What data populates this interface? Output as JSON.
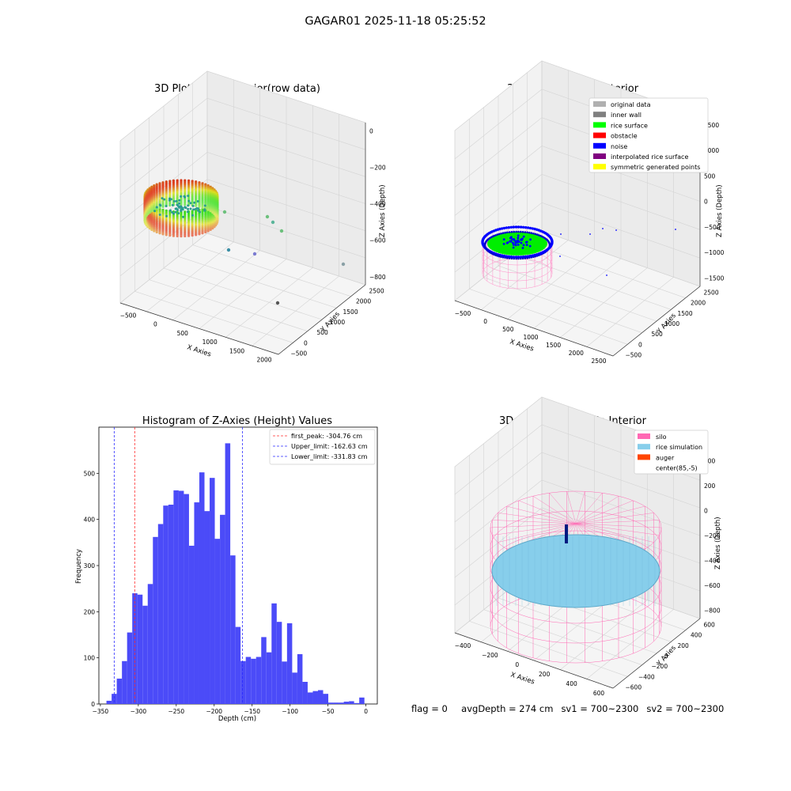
{
  "figure_title": "GAGAR01 2025-11-18 05:25:52",
  "status": {
    "flag": "flag = 0",
    "avg_depth": "avgDepth = 274 cm",
    "sv1": "sv1 = 700~2300",
    "sv2": "sv2 = 700~2300"
  },
  "colors": {
    "hist_bar": "#4b4bf8",
    "first_peak": "#ff2a2a",
    "limits": "#2a2aff",
    "silo": "#ff69b4",
    "rice_sim": "#87ceeb",
    "auger": "#ff4500",
    "rice_surface": "#00ff00",
    "noise": "#0000ff",
    "inner_wall": "#808080",
    "original_data": "#b0b0b0",
    "obstacle": "#ff0000",
    "interpolated": "#800080",
    "symmetric": "#ffff00"
  },
  "chart_data": [
    {
      "type": "scatter",
      "panel": "top-left",
      "title": "3D Plot of Silo Interior(row data)",
      "xlabel": "X Axies",
      "ylabel": "Y Axies",
      "zlabel": "Z Axies (Depth)",
      "x_ticks": [
        "−500",
        "0",
        "500",
        "1000",
        "1500",
        "2000"
      ],
      "y_ticks": [
        "−500",
        "0",
        "500",
        "1000",
        "1500",
        "2000",
        "2500"
      ],
      "z_ticks": [
        "0",
        "−200",
        "−400",
        "−600",
        "−800"
      ],
      "legend": null
    },
    {
      "type": "scatter",
      "panel": "top-right",
      "title": "3D classify of Silo Interior",
      "xlabel": "X Axies",
      "ylabel": "Y Axies",
      "zlabel": "Z Axies (Depth)",
      "x_ticks": [
        "−500",
        "0",
        "500",
        "1000",
        "1500",
        "2000",
        "2500"
      ],
      "y_ticks": [
        "−500",
        "0",
        "500",
        "1000",
        "1500",
        "2000",
        "2500"
      ],
      "z_ticks": [
        "1500",
        "1000",
        "500",
        "0",
        "−500",
        "−1000",
        "−1500"
      ],
      "legend": [
        {
          "label": "original data",
          "color": "#b0b0b0"
        },
        {
          "label": "inner wall",
          "color": "#808080"
        },
        {
          "label": "rice surface",
          "color": "#00ff00"
        },
        {
          "label": "obstacle",
          "color": "#ff0000"
        },
        {
          "label": "noise",
          "color": "#0000ff"
        },
        {
          "label": "interpolated rice surface",
          "color": "#800080"
        },
        {
          "label": "symmetric generated points",
          "color": "#ffff00"
        }
      ]
    },
    {
      "type": "bar",
      "panel": "bottom-left",
      "title": "Histogram of Z-Axies (Height) Values",
      "xlabel": "Depth (cm)",
      "ylabel": "Frequency",
      "xlim": [
        -352,
        15
      ],
      "ylim": [
        0,
        600
      ],
      "x_ticks": [
        -350,
        -300,
        -250,
        -200,
        -150,
        -100,
        -50,
        0
      ],
      "x_tick_labels": [
        "−350",
        "−300",
        "−250",
        "−200",
        "−150",
        "−100",
        "−50",
        "0"
      ],
      "y_ticks": [
        0,
        100,
        200,
        300,
        400,
        500
      ],
      "bin_start": -342,
      "bin_width": 6.8,
      "values": [
        7,
        22,
        55,
        93,
        155,
        240,
        237,
        213,
        260,
        362,
        390,
        430,
        432,
        463,
        462,
        455,
        343,
        437,
        502,
        418,
        490,
        358,
        410,
        565,
        322,
        167,
        93,
        102,
        98,
        102,
        145,
        112,
        218,
        178,
        92,
        175,
        68,
        108,
        48,
        25,
        28,
        30,
        22,
        3,
        3,
        3,
        5,
        6,
        2,
        14
      ],
      "vlines": [
        {
          "label": "first_peak: -304.76 cm",
          "x": -304.76,
          "color": "#ff2a2a"
        },
        {
          "label": "Upper_limit: -162.63 cm",
          "x": -162.63,
          "color": "#2a2aff"
        },
        {
          "label": "Lower_limit: -331.83 cm",
          "x": -331.83,
          "color": "#2a2aff"
        }
      ]
    },
    {
      "type": "scatter",
      "panel": "bottom-right",
      "title": "3D simulation of Silo Interior",
      "xlabel": "X Axies",
      "ylabel": "Y Axies",
      "zlabel": "Z Axies (Depth)",
      "x_ticks": [
        "−400",
        "−200",
        "0",
        "200",
        "400",
        "600"
      ],
      "y_ticks": [
        "−600",
        "−400",
        "−200",
        "0",
        "200",
        "400",
        "600"
      ],
      "z_ticks": [
        "400",
        "200",
        "0",
        "−200",
        "−400",
        "−600",
        "−800"
      ],
      "legend": [
        {
          "label": "silo",
          "color": "#ff69b4"
        },
        {
          "label": "rice simulation",
          "color": "#87ceeb"
        },
        {
          "label": "auger",
          "color": "#ff4500"
        },
        {
          "label": "center(85,-5)",
          "color": "#ffffff"
        }
      ]
    }
  ]
}
